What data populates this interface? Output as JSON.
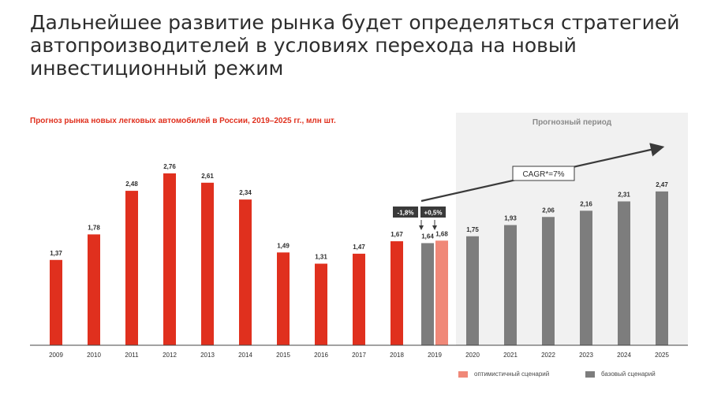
{
  "headline": "Дальнейшее развитие рынка будет определяться стратегией автопроизводителей в условиях перехода на новый инвестиционный режим",
  "chart_data": {
    "type": "bar",
    "title": "Прогноз рынка новых легковых автомобилей в России, 2019–2025 гг., млн шт.",
    "ylim": [
      0,
      3
    ],
    "grid": false,
    "categories": [
      "2009",
      "2010",
      "2011",
      "2012",
      "2013",
      "2014",
      "2015",
      "2016",
      "2017",
      "2018",
      "2019",
      "2020",
      "2021",
      "2022",
      "2023",
      "2024",
      "2025"
    ],
    "bars": [
      {
        "category": "2009",
        "value": 1.37,
        "label": "1,37",
        "kind": "actual"
      },
      {
        "category": "2010",
        "value": 1.78,
        "label": "1,78",
        "kind": "actual"
      },
      {
        "category": "2011",
        "value": 2.48,
        "label": "2,48",
        "kind": "actual"
      },
      {
        "category": "2012",
        "value": 2.76,
        "label": "2,76",
        "kind": "actual"
      },
      {
        "category": "2013",
        "value": 2.61,
        "label": "2,61",
        "kind": "actual"
      },
      {
        "category": "2014",
        "value": 2.34,
        "label": "2,34",
        "kind": "actual"
      },
      {
        "category": "2015",
        "value": 1.49,
        "label": "1,49",
        "kind": "actual"
      },
      {
        "category": "2016",
        "value": 1.31,
        "label": "1,31",
        "kind": "actual"
      },
      {
        "category": "2017",
        "value": 1.47,
        "label": "1,47",
        "kind": "actual"
      },
      {
        "category": "2018",
        "value": 1.67,
        "label": "1,67",
        "kind": "actual"
      },
      {
        "category": "2019",
        "value": 1.64,
        "label": "1,64",
        "kind": "base"
      },
      {
        "category": "2019",
        "value": 1.68,
        "label": "1,68",
        "kind": "optimistic"
      },
      {
        "category": "2020",
        "value": 1.75,
        "label": "1,75",
        "kind": "base"
      },
      {
        "category": "2021",
        "value": 1.93,
        "label": "1,93",
        "kind": "base"
      },
      {
        "category": "2022",
        "value": 2.06,
        "label": "2,06",
        "kind": "base"
      },
      {
        "category": "2023",
        "value": 2.16,
        "label": "2,16",
        "kind": "base"
      },
      {
        "category": "2024",
        "value": 2.31,
        "label": "2,31",
        "kind": "base"
      },
      {
        "category": "2025",
        "value": 2.47,
        "label": "2,47",
        "kind": "base"
      }
    ],
    "forecast_region": {
      "label": "Прогнозный период",
      "from": "2020",
      "to": "2025"
    },
    "annotations": {
      "change_base": "-1,8%",
      "change_optimistic": "+0,5%",
      "cagr": "CAGR*=7%"
    },
    "legend": {
      "position": "bottom-right",
      "entries": [
        {
          "label": "оптимистичный сценарий",
          "kind": "optimistic"
        },
        {
          "label": "базовый сценарий",
          "kind": "base"
        }
      ]
    },
    "colors": {
      "actual": "#e0301e",
      "base": "#7d7d7d",
      "optimistic": "#f08878",
      "forecast_bg": "#f1f1f1",
      "label_box": "#3a3a3a"
    }
  }
}
